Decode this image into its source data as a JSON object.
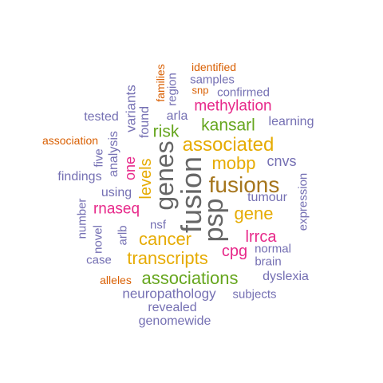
{
  "colors": {
    "orange": "#D95F02",
    "purple": "#7570B3",
    "magenta": "#E7298A",
    "green": "#66A61E",
    "gold": "#E6AB02",
    "brown": "#A6761D",
    "gray": "#666666"
  },
  "words": [
    {
      "text": "identified",
      "color": "orange"
    },
    {
      "text": "families",
      "color": "orange"
    },
    {
      "text": "samples",
      "color": "purple"
    },
    {
      "text": "snp",
      "color": "orange"
    },
    {
      "text": "region",
      "color": "purple"
    },
    {
      "text": "confirmed",
      "color": "purple"
    },
    {
      "text": "variants",
      "color": "purple"
    },
    {
      "text": "methylation",
      "color": "magenta"
    },
    {
      "text": "tested",
      "color": "purple"
    },
    {
      "text": "arla",
      "color": "purple"
    },
    {
      "text": "learning",
      "color": "purple"
    },
    {
      "text": "found",
      "color": "purple"
    },
    {
      "text": "risk",
      "color": "green"
    },
    {
      "text": "kansarl",
      "color": "green"
    },
    {
      "text": "association",
      "color": "orange"
    },
    {
      "text": "analysis",
      "color": "purple"
    },
    {
      "text": "associated",
      "color": "gold"
    },
    {
      "text": "five",
      "color": "purple"
    },
    {
      "text": "genes",
      "color": "gray"
    },
    {
      "text": "one",
      "color": "magenta"
    },
    {
      "text": "cnvs",
      "color": "purple"
    },
    {
      "text": "mobp",
      "color": "gold"
    },
    {
      "text": "findings",
      "color": "purple"
    },
    {
      "text": "levels",
      "color": "gold"
    },
    {
      "text": "fusion",
      "color": "gray"
    },
    {
      "text": "fusions",
      "color": "brown"
    },
    {
      "text": "using",
      "color": "purple"
    },
    {
      "text": "tumour",
      "color": "purple"
    },
    {
      "text": "expression",
      "color": "purple"
    },
    {
      "text": "number",
      "color": "purple"
    },
    {
      "text": "rnaseq",
      "color": "magenta"
    },
    {
      "text": "gene",
      "color": "gold"
    },
    {
      "text": "psp",
      "color": "gray"
    },
    {
      "text": "nsf",
      "color": "purple"
    },
    {
      "text": "novel",
      "color": "purple"
    },
    {
      "text": "arlb",
      "color": "purple"
    },
    {
      "text": "lrrca",
      "color": "magenta"
    },
    {
      "text": "cancer",
      "color": "gold"
    },
    {
      "text": "normal",
      "color": "purple"
    },
    {
      "text": "cpg",
      "color": "magenta"
    },
    {
      "text": "case",
      "color": "purple"
    },
    {
      "text": "transcripts",
      "color": "gold"
    },
    {
      "text": "brain",
      "color": "purple"
    },
    {
      "text": "alleles",
      "color": "orange"
    },
    {
      "text": "associations",
      "color": "green"
    },
    {
      "text": "dyslexia",
      "color": "purple"
    },
    {
      "text": "neuropathology",
      "color": "purple"
    },
    {
      "text": "subjects",
      "color": "purple"
    },
    {
      "text": "revealed",
      "color": "purple"
    },
    {
      "text": "genomewide",
      "color": "purple"
    }
  ]
}
